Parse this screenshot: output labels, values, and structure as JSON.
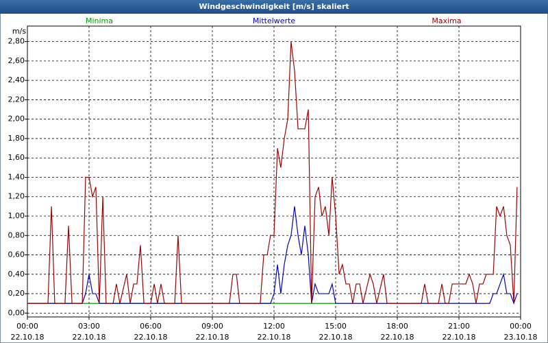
{
  "chart_data": {
    "type": "line",
    "title": "Windgeschwindigkeit [m/s] skaliert",
    "y_label": "m/s",
    "xlim": [
      0,
      24
    ],
    "xticks": [
      {
        "value": 0,
        "label": "00:00\n22.10.18"
      },
      {
        "value": 3,
        "label": "03:00\n22.10.18"
      },
      {
        "value": 6,
        "label": "06:00\n22.10.18"
      },
      {
        "value": 9,
        "label": "09:00\n22.10.18"
      },
      {
        "value": 12,
        "label": "12:00\n22.10.18"
      },
      {
        "value": 15,
        "label": "15:00\n22.10.18"
      },
      {
        "value": 18,
        "label": "18:00\n22.10.18"
      },
      {
        "value": 21,
        "label": "21:00\n22.10.18"
      },
      {
        "value": 24,
        "label": "00:00\n23.10.18"
      }
    ],
    "ylim": [
      -0.04,
      2.96
    ],
    "yticks": [
      {
        "value": 0,
        "label": "0,00"
      },
      {
        "value": 0.2,
        "label": "0,20"
      },
      {
        "value": 0.4,
        "label": "0,40"
      },
      {
        "value": 0.6,
        "label": "0,60"
      },
      {
        "value": 0.8,
        "label": "0,80"
      },
      {
        "value": 1,
        "label": "1,00"
      },
      {
        "value": 1.2,
        "label": "1,20"
      },
      {
        "value": 1.4,
        "label": "1,40"
      },
      {
        "value": 1.6,
        "label": "1,60"
      },
      {
        "value": 1.8,
        "label": "1,80"
      },
      {
        "value": 2,
        "label": "2,00"
      },
      {
        "value": 2.2,
        "label": "2,20"
      },
      {
        "value": 2.4,
        "label": "2,40"
      },
      {
        "value": 2.6,
        "label": "2,60"
      },
      {
        "value": 2.8,
        "label": "2,80"
      }
    ],
    "grid": true,
    "series": [
      {
        "name": "Minima",
        "color": "#00a000",
        "x": [
          0,
          15
        ],
        "values": [
          0.1,
          0.1
        ]
      },
      {
        "name": "Mittelwerte",
        "color": "#0000c0",
        "x": [
          0,
          2.67,
          2.83,
          3,
          3.17,
          3.33,
          3.5,
          11.83,
          12,
          12.17,
          12.33,
          12.5,
          12.67,
          12.83,
          13,
          13.17,
          13.33,
          13.5,
          13.67,
          13.83,
          14,
          14.17,
          14.5,
          14.67,
          14.83,
          15,
          22.5,
          22.67,
          22.83,
          23.17,
          23.33,
          23.5,
          23.67,
          23.83
        ],
        "values": [
          0.1,
          0.1,
          0.2,
          0.4,
          0.2,
          0.2,
          0.1,
          0.1,
          0.2,
          0.5,
          0.2,
          0.5,
          0.7,
          0.8,
          1.1,
          0.8,
          0.6,
          0.9,
          0.6,
          0.1,
          0.3,
          0.2,
          0.2,
          0.2,
          0.3,
          0.1,
          0.1,
          0.2,
          0.2,
          0.4,
          0.2,
          0.2,
          0.1,
          0.2
        ]
      },
      {
        "name": "Maxima",
        "color": "#a00000",
        "x": [
          0,
          1,
          1.17,
          1.33,
          1.83,
          2,
          2.17,
          2.67,
          2.83,
          3,
          3.17,
          3.33,
          3.5,
          3.67,
          3.83,
          4.17,
          4.33,
          4.5,
          4.83,
          5,
          5.17,
          5.33,
          5.5,
          5.67,
          6,
          6.17,
          6.33,
          6.5,
          6.67,
          7.17,
          7.33,
          7.5,
          9.83,
          10,
          10.17,
          10.33,
          11.33,
          11.5,
          11.67,
          11.83,
          12,
          12.17,
          12.33,
          12.5,
          12.67,
          12.83,
          13,
          13.17,
          13.33,
          13.5,
          13.67,
          13.83,
          14,
          14.17,
          14.33,
          14.5,
          14.67,
          14.83,
          15,
          15.17,
          15.33,
          15.5,
          15.67,
          15.83,
          16,
          16.17,
          16.33,
          16.67,
          16.83,
          17,
          17.33,
          17.5,
          19.17,
          19.33,
          19.5,
          20,
          20.17,
          20.33,
          20.5,
          20.67,
          21.33,
          21.5,
          21.67,
          21.83,
          22,
          22.17,
          22.33,
          22.67,
          22.83,
          23,
          23.17,
          23.33,
          23.5,
          23.67,
          23.83
        ],
        "values": [
          0.1,
          0.1,
          1.1,
          0.1,
          0.1,
          0.9,
          0.1,
          0.1,
          1.4,
          1.4,
          1.2,
          1.3,
          0.1,
          1.2,
          0.1,
          0.1,
          0.3,
          0.1,
          0.4,
          0.1,
          0.3,
          0.3,
          0.7,
          0.1,
          0.1,
          0.3,
          0.1,
          0.3,
          0.1,
          0.1,
          0.8,
          0.1,
          0.1,
          0.4,
          0.4,
          0.1,
          0.1,
          0.6,
          0.6,
          0.8,
          0.8,
          1.7,
          1.5,
          1.8,
          2.0,
          2.8,
          2.5,
          1.9,
          1.9,
          1.9,
          2.1,
          0.1,
          1.2,
          1.3,
          1.0,
          1.1,
          0.8,
          1.4,
          1.0,
          0.4,
          0.5,
          0.3,
          0.3,
          0.1,
          0.3,
          0.3,
          0.1,
          0.4,
          0.3,
          0.1,
          0.4,
          0.1,
          0.1,
          0.3,
          0.1,
          0.1,
          0.3,
          0.1,
          0.1,
          0.3,
          0.3,
          0.4,
          0.3,
          0.1,
          0.3,
          0.3,
          0.4,
          0.4,
          1.1,
          1.0,
          1.1,
          0.8,
          0.7,
          0.1,
          1.3
        ]
      }
    ]
  }
}
